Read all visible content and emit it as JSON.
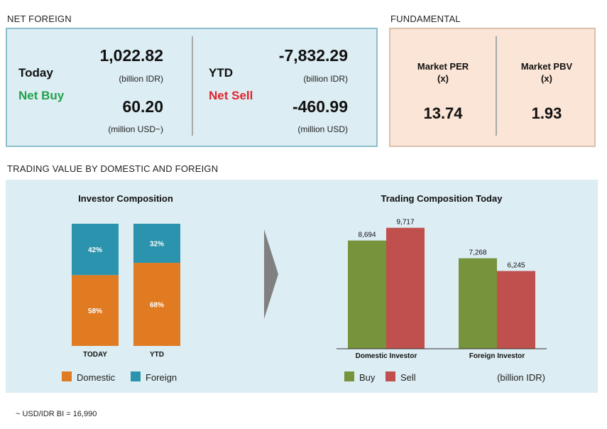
{
  "net_foreign": {
    "section_title": "NET FOREIGN",
    "today": {
      "label": "Today",
      "direction": "Net Buy",
      "value_idr": "1,022.82",
      "unit_idr": "(billion IDR)",
      "value_usd": "60.20",
      "unit_usd": "(million USD~)"
    },
    "ytd": {
      "label": "YTD",
      "direction": "Net Sell",
      "value_idr": "-7,832.29",
      "unit_idr": "(billion IDR)",
      "value_usd": "-460.99",
      "unit_usd": "(million USD)"
    }
  },
  "fundamental": {
    "section_title": "FUNDAMENTAL",
    "per": {
      "title": "Market PER",
      "unit": "(x)",
      "value": "13.74"
    },
    "pbv": {
      "title": "Market PBV",
      "unit": "(x)",
      "value": "1.93"
    }
  },
  "trading_value": {
    "section_title": "TRADING VALUE BY DOMESTIC AND FOREIGN"
  },
  "colors": {
    "domestic": "#e07b22",
    "foreign": "#2b93ad",
    "buy": "#77933c",
    "sell": "#c0504d",
    "arrow": "#808080"
  },
  "chart_data": [
    {
      "type": "bar",
      "stacked": true,
      "percent": true,
      "title": "Investor Composition",
      "categories": [
        "TODAY",
        "YTD"
      ],
      "series": [
        {
          "name": "Domestic",
          "values": [
            58,
            68
          ],
          "labels": [
            "58%",
            "68%"
          ]
        },
        {
          "name": "Foreign",
          "values": [
            42,
            32
          ],
          "labels": [
            "42%",
            "32%"
          ]
        }
      ],
      "ylim": [
        0,
        100
      ],
      "legend": "bottom"
    },
    {
      "type": "bar",
      "title": "Trading Composition Today",
      "categories": [
        "Domestic Investor",
        "Foreign Investor"
      ],
      "series": [
        {
          "name": "Buy",
          "values": [
            8694,
            7268
          ],
          "labels": [
            "8,694",
            "7,268"
          ]
        },
        {
          "name": "Sell",
          "values": [
            9717,
            6245
          ],
          "labels": [
            "9,717",
            "6,245"
          ]
        }
      ],
      "ylim": [
        0,
        10500
      ],
      "unit_note": "(billion IDR)",
      "legend": "bottom"
    }
  ],
  "footnote": "~ USD/IDR BI = 16,990"
}
